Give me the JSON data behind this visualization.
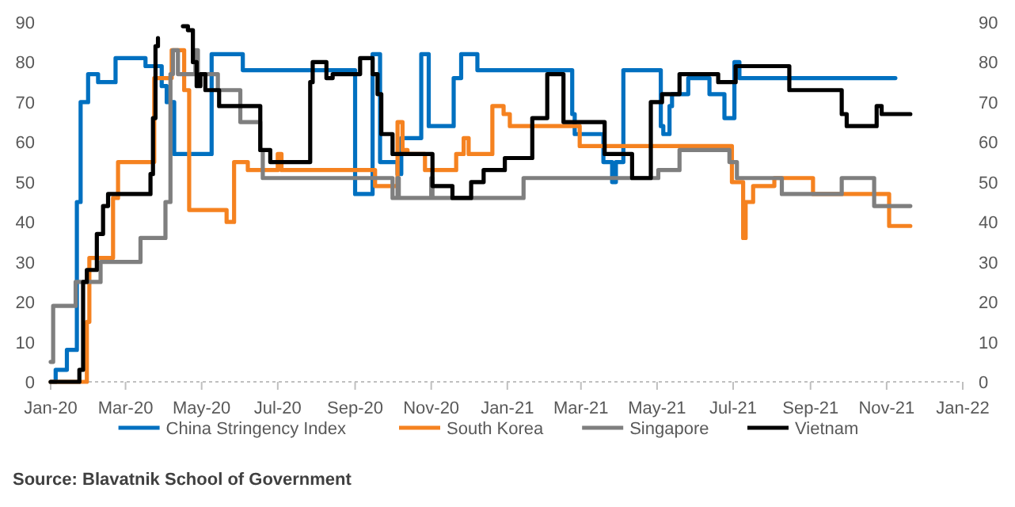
{
  "chart_data": {
    "type": "step",
    "xlim": [
      "2020-01",
      "2022-01"
    ],
    "xticks": [
      {
        "value": "2020-01",
        "label": "Jan-20"
      },
      {
        "value": "2020-03",
        "label": "Mar-20"
      },
      {
        "value": "2020-05",
        "label": "May-20"
      },
      {
        "value": "2020-07",
        "label": "Jul-20"
      },
      {
        "value": "2020-09",
        "label": "Sep-20"
      },
      {
        "value": "2020-11",
        "label": "Nov-20"
      },
      {
        "value": "2021-01",
        "label": "Jan-21"
      },
      {
        "value": "2021-03",
        "label": "Mar-21"
      },
      {
        "value": "2021-05",
        "label": "May-21"
      },
      {
        "value": "2021-07",
        "label": "Jul-21"
      },
      {
        "value": "2021-09",
        "label": "Sep-21"
      },
      {
        "value": "2021-11",
        "label": "Nov-21"
      },
      {
        "value": "2022-01",
        "label": "Jan-22"
      }
    ],
    "ylim": [
      0,
      90
    ],
    "yticks": [
      0,
      10,
      20,
      30,
      40,
      50,
      60,
      70,
      80,
      90
    ],
    "y2lim": [
      0,
      90
    ],
    "y2ticks": [
      0,
      10,
      20,
      30,
      40,
      50,
      60,
      70,
      80,
      90
    ],
    "legend": "bottom",
    "grid": false,
    "series": [
      {
        "name": "China Stringency Index",
        "color": "#0070c0",
        "x": [
          "2020-01-01",
          "2020-01-05",
          "2020-01-14",
          "2020-01-22",
          "2020-01-25",
          "2020-01-31",
          "2020-02-08",
          "2020-02-22",
          "2020-03-17",
          "2020-03-30",
          "2020-04-03",
          "2020-04-09",
          "2020-05-09",
          "2020-06-03",
          "2020-09-01",
          "2020-09-15",
          "2020-09-21",
          "2020-10-05",
          "2020-10-08",
          "2020-10-24",
          "2020-10-30",
          "2020-11-19",
          "2020-11-25",
          "2020-12-08",
          "2021-02-22",
          "2021-02-24",
          "2021-03-02",
          "2021-03-19",
          "2021-03-26",
          "2021-03-29",
          "2021-04-04",
          "2021-05-04",
          "2021-05-06",
          "2021-05-11",
          "2021-05-13",
          "2021-05-26",
          "2021-06-12",
          "2021-06-24",
          "2021-07-02",
          "2021-07-06",
          "2021-07-19",
          "2021-11-08"
        ],
        "values": [
          0,
          3,
          8,
          45,
          70,
          77,
          75,
          81,
          79,
          74,
          70,
          57,
          82,
          78,
          47,
          82,
          55,
          52,
          61,
          82,
          64,
          76,
          82,
          78,
          67,
          62,
          62,
          55,
          50,
          55,
          78,
          64,
          62,
          69,
          72,
          76,
          72,
          66,
          80,
          76,
          76,
          76
        ]
      },
      {
        "name": "South Korea",
        "color": "#f58220",
        "x": [
          "2020-01-01",
          "2020-01-30",
          "2020-02-01",
          "2020-02-04",
          "2020-02-20",
          "2020-02-24",
          "2020-03-24",
          "2020-04-07",
          "2020-04-17",
          "2020-04-21",
          "2020-05-21",
          "2020-05-27",
          "2020-06-07",
          "2020-07-01",
          "2020-07-04",
          "2020-09-17",
          "2020-09-20",
          "2020-10-05",
          "2020-10-09",
          "2020-10-13",
          "2020-10-27",
          "2020-11-21",
          "2020-11-27",
          "2020-12-01",
          "2020-12-17",
          "2020-12-20",
          "2020-12-29",
          "2021-01-03",
          "2021-02-28",
          "2021-05-02",
          "2021-06-30",
          "2021-07-09",
          "2021-07-11",
          "2021-07-17",
          "2021-08-03",
          "2021-09-03",
          "2021-11-03",
          "2021-11-20"
        ],
        "values": [
          0,
          15,
          31,
          31,
          46,
          55,
          76,
          83,
          73,
          43,
          40,
          55,
          53,
          57,
          53,
          49,
          49,
          65,
          58,
          57,
          53,
          57,
          61,
          57,
          57,
          69,
          67,
          64,
          59,
          59,
          50,
          36,
          45,
          49,
          51,
          47,
          39,
          39
        ]
      },
      {
        "name": "Singapore",
        "color": "#7f7f7f",
        "x": [
          "2020-01-01",
          "2020-01-03",
          "2020-01-21",
          "2020-02-10",
          "2020-03-13",
          "2020-04-02",
          "2020-04-06",
          "2020-04-08",
          "2020-04-12",
          "2020-04-14",
          "2020-04-26",
          "2020-04-28",
          "2020-05-14",
          "2020-06-01",
          "2020-06-17",
          "2020-06-19",
          "2020-10-01",
          "2020-10-05",
          "2020-10-06",
          "2020-11-01",
          "2020-11-02",
          "2020-12-26",
          "2020-12-29",
          "2021-01-14",
          "2021-05-02",
          "2021-05-19",
          "2021-06-28",
          "2021-07-04",
          "2021-08-09",
          "2021-09-26",
          "2021-10-22",
          "2021-11-20"
        ],
        "values": [
          5,
          19,
          25,
          30,
          36,
          45,
          77,
          83,
          77,
          77,
          83,
          77,
          73,
          65,
          58,
          51,
          46,
          51,
          46,
          51,
          46,
          46,
          46,
          51,
          53,
          58,
          55,
          51,
          47,
          51,
          44,
          44
        ]
      },
      {
        "name": "Vietnam",
        "color": "#000000",
        "x": [
          "2020-01-01",
          "2020-01-24",
          "2020-01-27",
          "2020-01-30",
          "2020-02-01",
          "2020-02-07",
          "2020-02-12",
          "2020-02-16",
          "2020-03-21",
          "2020-03-23",
          "2020-03-25",
          "2020-03-27",
          "2020-03-29",
          "2020-04-16",
          "2020-04-20",
          "2020-04-24",
          "2020-04-27",
          "2020-04-30",
          "2020-05-04",
          "2020-05-15",
          "2020-06-17",
          "2020-06-25",
          "2020-07-27",
          "2020-07-29",
          "2020-08-01",
          "2020-08-09",
          "2020-08-14",
          "2020-09-05",
          "2020-09-07",
          "2020-09-15",
          "2020-09-19",
          "2020-09-22",
          "2020-10-01",
          "2020-11-02",
          "2020-11-18",
          "2020-12-03",
          "2020-12-13",
          "2020-12-30",
          "2021-01-21",
          "2021-01-26",
          "2021-02-02",
          "2021-02-15",
          "2021-03-20",
          "2021-04-11",
          "2021-04-26",
          "2021-05-05",
          "2021-05-19",
          "2021-06-19",
          "2021-07-03",
          "2021-08-15",
          "2021-09-26",
          "2021-09-30",
          "2021-10-24",
          "2021-10-28",
          "2021-11-03",
          "2021-11-20"
        ],
        "values": [
          0,
          3,
          25,
          28,
          28,
          37,
          44,
          47,
          52,
          66,
          84,
          86,
          null,
          89,
          88,
          80,
          74,
          77,
          73,
          69,
          58,
          55,
          75,
          80,
          80,
          76,
          77,
          81,
          81,
          77,
          72,
          62,
          57,
          49,
          46,
          50,
          53,
          56,
          66,
          66,
          77,
          65,
          57,
          51,
          70,
          72,
          77,
          75,
          79,
          73,
          67,
          64,
          69,
          67,
          67,
          67
        ]
      }
    ],
    "annotations": [
      "Source:  Blavatnik School of Government"
    ]
  }
}
